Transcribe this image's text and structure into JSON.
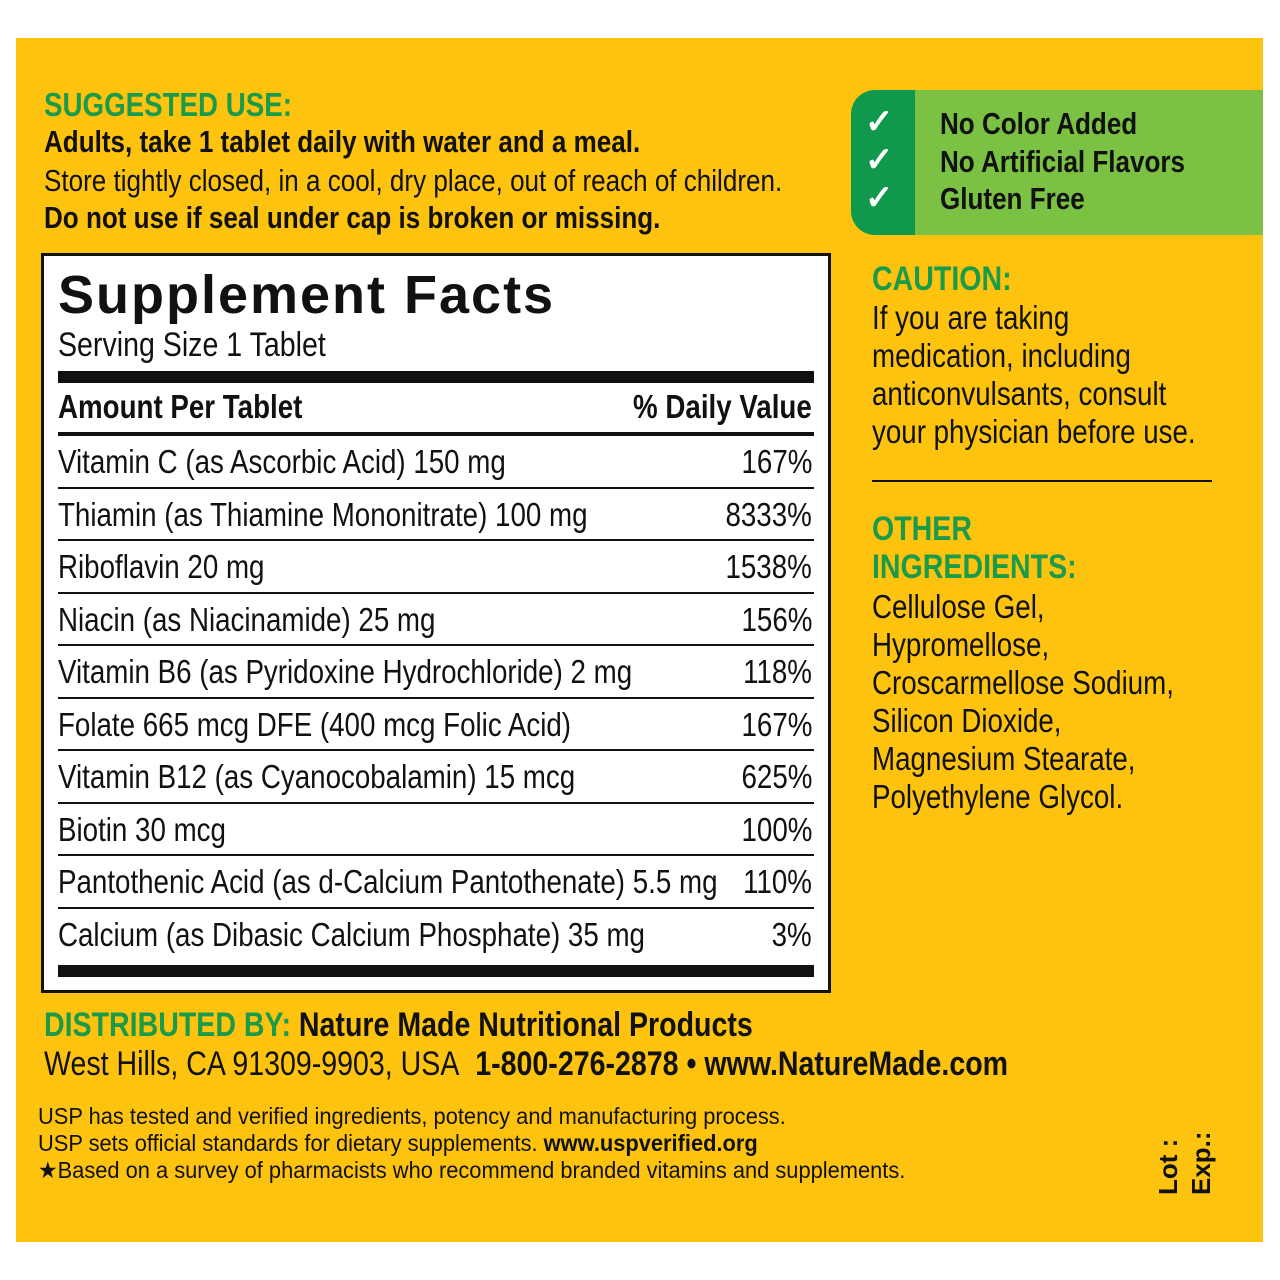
{
  "suggested_use": {
    "heading": "SUGGESTED USE:",
    "line1": "Adults, take 1 tablet daily with water and a meal.",
    "line2": "Store tightly closed, in a cool, dry place, out of reach of children.",
    "line3": "Do not use if seal under cap is broken or missing."
  },
  "facts": {
    "title": "Supplement Facts",
    "serving": "Serving Size 1 Tablet",
    "col_amount": "Amount Per Tablet",
    "col_dv": "% Daily Value",
    "rows": [
      {
        "name": "Vitamin C (as Ascorbic Acid) 150 mg",
        "dv": "167%"
      },
      {
        "name": "Thiamin (as Thiamine Mononitrate) 100 mg",
        "dv": "8333%"
      },
      {
        "name": "Riboflavin 20 mg",
        "dv": "1538%"
      },
      {
        "name": "Niacin (as Niacinamide) 25 mg",
        "dv": "156%"
      },
      {
        "name": "Vitamin B6 (as Pyridoxine Hydrochloride) 2 mg",
        "dv": "118%"
      },
      {
        "name": "Folate 665 mcg DFE (400 mcg Folic Acid)",
        "dv": "167%"
      },
      {
        "name": "Vitamin B12 (as Cyanocobalamin) 15 mcg",
        "dv": "625%"
      },
      {
        "name": "Biotin 30 mcg",
        "dv": "100%"
      },
      {
        "name": "Pantothenic Acid (as d-Calcium Pantothenate) 5.5 mg",
        "dv": "110%"
      },
      {
        "name": "Calcium (as Dibasic Calcium Phosphate) 35 mg",
        "dv": "3%"
      }
    ]
  },
  "claims": {
    "icon": "checkmark-icon",
    "items": [
      "No Color Added",
      "No Artificial Flavors",
      "Gluten Free"
    ]
  },
  "caution": {
    "heading": "CAUTION:",
    "lines": [
      "If you are taking",
      "medication, including",
      "anticonvulsants, consult",
      "your physician before use."
    ]
  },
  "other": {
    "heading1": "OTHER",
    "heading2": "INGREDIENTS:",
    "lines": [
      "Cellulose Gel,",
      "Hypromellose,",
      "Croscarmellose Sodium,",
      "Silicon Dioxide,",
      "Magnesium Stearate,",
      "Polyethylene Glycol."
    ]
  },
  "distributed": {
    "heading": "DISTRIBUTED BY:",
    "company": "Nature Made Nutritional Products",
    "address": "West Hills, CA 91309-9903, USA",
    "phone": "1-800-276-2878",
    "bullet": "•",
    "website": "www.NatureMade.com"
  },
  "usp": {
    "line1": "USP has tested and verified ingredients, potency and manufacturing process.",
    "line2": "USP sets official standards for dietary supplements.",
    "line2_link": "www.uspverified.org",
    "line3": "★Based on a survey of pharmacists who recommend branded vitamins and supplements."
  },
  "lot_label": "Lot :",
  "exp_label": "Exp.:",
  "colors": {
    "background": "#FDC30F",
    "heading_green": "#1b9a4a",
    "dark_green": "#10994C",
    "light_green": "#7BC143"
  }
}
